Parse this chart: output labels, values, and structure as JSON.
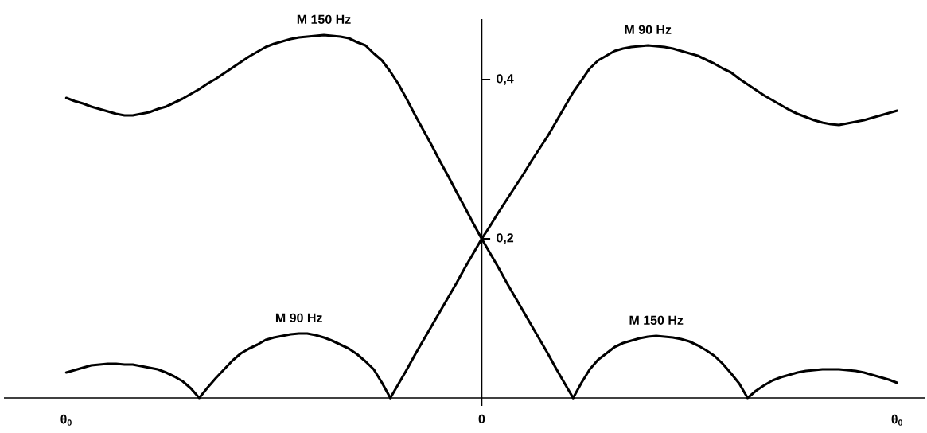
{
  "chart_data": {
    "type": "line",
    "categories": [
      "θ$_{0}$",
      null,
      null,
      null,
      null,
      null,
      null,
      null,
      null,
      null,
      null,
      null,
      null,
      null,
      null,
      null,
      null,
      null,
      null,
      null,
      null,
      null,
      null,
      null,
      null,
      null,
      null,
      null,
      null,
      null,
      null,
      null,
      null,
      null,
      null,
      null,
      null,
      null,
      null,
      null,
      null,
      null,
      null,
      null,
      null,
      null,
      null,
      null,
      null,
      null,
      "0",
      null,
      null,
      null,
      null,
      null,
      null,
      null,
      null,
      null,
      null,
      null,
      null,
      null,
      null,
      null,
      null,
      null,
      null,
      null,
      null,
      null,
      null,
      null,
      null,
      null,
      null,
      null,
      null,
      null,
      null,
      null,
      null,
      null,
      null,
      null,
      null,
      null,
      null,
      null,
      null,
      null,
      null,
      null,
      null,
      null,
      null,
      null,
      null,
      null,
      "θ$_{0}$"
    ],
    "series": [
      {
        "name": "M 150 Hz",
        "color": "#000000",
        "values": [
          0.377,
          0.373,
          0.37,
          0.366,
          0.363,
          0.36,
          0.357,
          0.355,
          0.355,
          0.357,
          0.359,
          0.363,
          0.366,
          0.371,
          0.376,
          0.382,
          0.388,
          0.395,
          0.401,
          0.408,
          0.415,
          0.422,
          0.429,
          0.435,
          0.441,
          0.445,
          0.448,
          0.451,
          0.453,
          0.454,
          0.455,
          0.456,
          0.455,
          0.454,
          0.452,
          0.447,
          0.443,
          0.433,
          0.424,
          0.41,
          0.394,
          0.375,
          0.355,
          0.336,
          0.317,
          0.297,
          0.278,
          0.258,
          0.239,
          0.219,
          0.2,
          0.182,
          0.164,
          0.145,
          0.127,
          0.109,
          0.091,
          0.073,
          0.055,
          0.036,
          0.018,
          0,
          null,
          null,
          null,
          null,
          null,
          null,
          null,
          null,
          null,
          null,
          null,
          null,
          null,
          null,
          null,
          null,
          null,
          null,
          null,
          null,
          null,
          null,
          null,
          null,
          null,
          null,
          null,
          null,
          null,
          null,
          null,
          null,
          null,
          null,
          null,
          null,
          null,
          null,
          null
        ]
      },
      {
        "name": "M 150 Hz",
        "color": "#000000",
        "values": [
          null,
          null,
          null,
          null,
          null,
          null,
          null,
          null,
          null,
          null,
          null,
          null,
          null,
          null,
          null,
          null,
          null,
          null,
          null,
          null,
          null,
          null,
          null,
          null,
          null,
          null,
          null,
          null,
          null,
          null,
          null,
          null,
          null,
          null,
          null,
          null,
          null,
          null,
          null,
          null,
          null,
          null,
          null,
          null,
          null,
          null,
          null,
          null,
          null,
          null,
          null,
          null,
          null,
          null,
          null,
          null,
          null,
          null,
          null,
          null,
          null,
          0,
          0.019,
          0.036,
          0.048,
          0.056,
          0.064,
          0.069,
          0.072,
          0.075,
          0.077,
          0.078,
          0.077,
          0.076,
          0.074,
          0.071,
          0.066,
          0.06,
          0.053,
          0.043,
          0.031,
          0.018,
          0,
          0.009,
          0.016,
          0.022,
          0.026,
          0.029,
          0.032,
          0.034,
          0.035,
          0.036,
          0.036,
          0.036,
          0.035,
          0.034,
          0.032,
          0.029,
          0.026,
          0.023,
          0.019
        ]
      },
      {
        "name": "M 90 Hz",
        "color": "#000000",
        "values": [
          0.032,
          0.035,
          0.038,
          0.041,
          0.042,
          0.043,
          0.043,
          0.042,
          0.042,
          0.04,
          0.038,
          0.036,
          0.032,
          0.027,
          0.021,
          0.012,
          0,
          0.013,
          0.025,
          0.036,
          0.047,
          0.056,
          0.062,
          0.067,
          0.073,
          0.076,
          0.078,
          0.08,
          0.081,
          0.081,
          0.079,
          0.076,
          0.072,
          0.067,
          0.062,
          0.055,
          0.046,
          0.036,
          0.019,
          0,
          null,
          null,
          null,
          null,
          null,
          null,
          null,
          null,
          null,
          null,
          null,
          null,
          null,
          null,
          null,
          null,
          null,
          null,
          null,
          null,
          null,
          null,
          null,
          null,
          null,
          null,
          null,
          null,
          null,
          null,
          null,
          null,
          null,
          null,
          null,
          null,
          null,
          null,
          null,
          null,
          null,
          null,
          null,
          null,
          null,
          null,
          null,
          null,
          null,
          null,
          null,
          null,
          null,
          null,
          null,
          null,
          null,
          null,
          null,
          null,
          null
        ]
      },
      {
        "name": "M 90 Hz",
        "color": "#000000",
        "values": [
          null,
          null,
          null,
          null,
          null,
          null,
          null,
          null,
          null,
          null,
          null,
          null,
          null,
          null,
          null,
          null,
          null,
          null,
          null,
          null,
          null,
          null,
          null,
          null,
          null,
          null,
          null,
          null,
          null,
          null,
          null,
          null,
          null,
          null,
          null,
          null,
          null,
          null,
          null,
          0,
          0.018,
          0.036,
          0.055,
          0.073,
          0.091,
          0.109,
          0.127,
          0.145,
          0.164,
          0.182,
          0.2,
          0.216,
          0.233,
          0.249,
          0.265,
          0.281,
          0.298,
          0.314,
          0.33,
          0.348,
          0.366,
          0.384,
          0.399,
          0.414,
          0.424,
          0.43,
          0.436,
          0.439,
          0.441,
          0.442,
          0.443,
          0.442,
          0.441,
          0.439,
          0.436,
          0.433,
          0.43,
          0.425,
          0.42,
          0.414,
          0.409,
          0.401,
          0.394,
          0.387,
          0.38,
          0.374,
          0.368,
          0.362,
          0.357,
          0.353,
          0.349,
          0.346,
          0.344,
          0.343,
          0.345,
          0.347,
          0.349,
          0.352,
          0.355,
          0.358,
          0.361
        ]
      }
    ],
    "ylim": [
      -0.01,
      0.476
    ],
    "yticks": [
      {
        "value": 0.2,
        "label": "0,2"
      },
      {
        "value": 0.4,
        "label": "0,4"
      }
    ],
    "marker": "none",
    "line_style": "solid"
  }
}
